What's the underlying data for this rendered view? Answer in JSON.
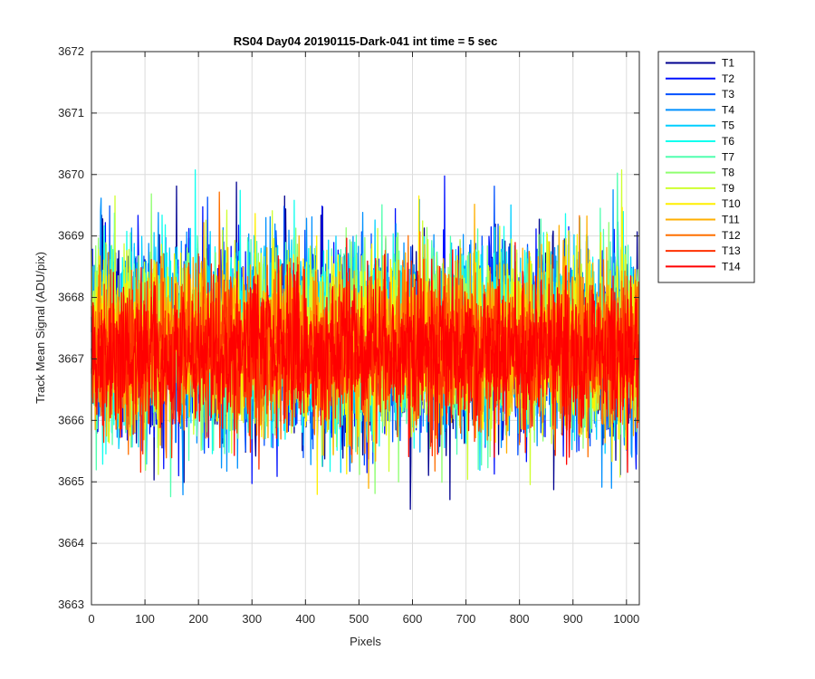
{
  "chart_data": {
    "type": "line",
    "title": "RS04 Day04 20190115-Dark-041 int time = 5 sec",
    "xlabel": "Pixels",
    "ylabel": "Track Mean Signal (ADU/pix)",
    "xlim": [
      0,
      1024
    ],
    "ylim": [
      3663,
      3672
    ],
    "xticks": [
      0,
      100,
      200,
      300,
      400,
      500,
      600,
      700,
      800,
      900,
      1000
    ],
    "yticks": [
      3663,
      3664,
      3665,
      3666,
      3667,
      3668,
      3669,
      3670,
      3671,
      3672
    ],
    "grid": true,
    "legend_position": "outside-top-right",
    "n_pixels": 1024,
    "series": [
      {
        "name": "T1",
        "color": "#00008F",
        "mean": 3667.2,
        "spread": 1.3
      },
      {
        "name": "T2",
        "color": "#0010FF",
        "mean": 3667.2,
        "spread": 1.3
      },
      {
        "name": "T3",
        "color": "#0050FF",
        "mean": 3667.2,
        "spread": 1.25
      },
      {
        "name": "T4",
        "color": "#0090FF",
        "mean": 3667.3,
        "spread": 1.25
      },
      {
        "name": "T5",
        "color": "#00CFFF",
        "mean": 3667.3,
        "spread": 1.2
      },
      {
        "name": "T6",
        "color": "#10FFEF",
        "mean": 3667.3,
        "spread": 1.2
      },
      {
        "name": "T7",
        "color": "#50FFAF",
        "mean": 3667.3,
        "spread": 1.2
      },
      {
        "name": "T8",
        "color": "#8FFF70",
        "mean": 3667.3,
        "spread": 1.15
      },
      {
        "name": "T9",
        "color": "#CFFF30",
        "mean": 3667.3,
        "spread": 1.15
      },
      {
        "name": "T10",
        "color": "#FFEF00",
        "mean": 3667.3,
        "spread": 1.1
      },
      {
        "name": "T11",
        "color": "#FFAF00",
        "mean": 3667.2,
        "spread": 1.1
      },
      {
        "name": "T12",
        "color": "#FF7000",
        "mean": 3667.2,
        "spread": 1.05
      },
      {
        "name": "T13",
        "color": "#FF3000",
        "mean": 3667.1,
        "spread": 1.0
      },
      {
        "name": "T14",
        "color": "#FF0000",
        "mean": 3667.1,
        "spread": 0.95
      }
    ]
  }
}
